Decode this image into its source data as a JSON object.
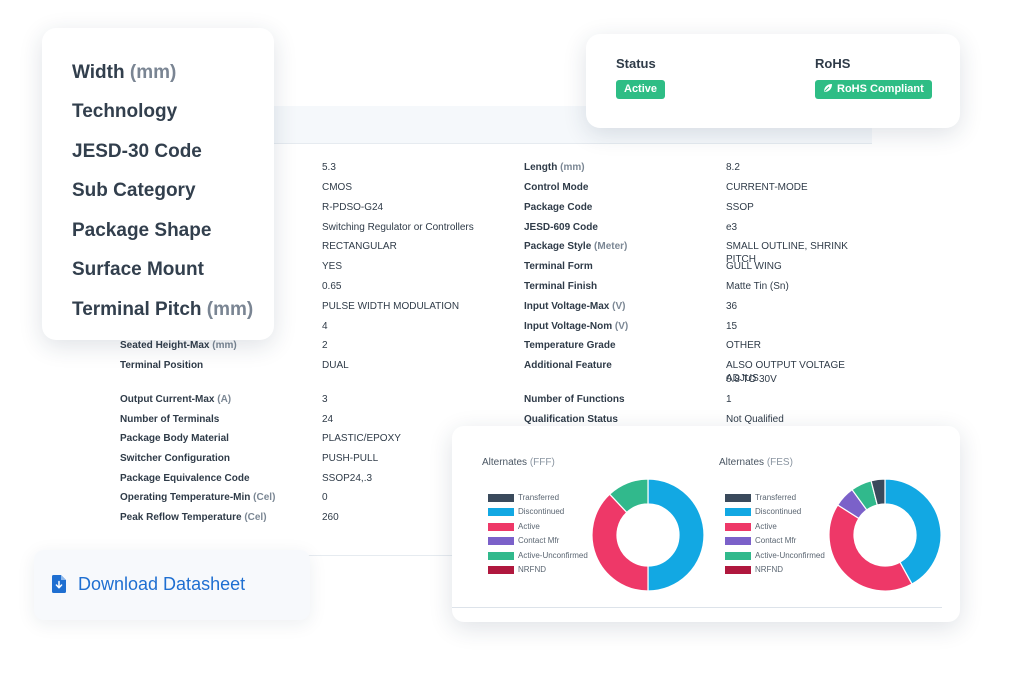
{
  "float_labels": [
    {
      "label": "Width",
      "unit": "(mm)"
    },
    {
      "label": "Technology",
      "unit": ""
    },
    {
      "label": "JESD-30 Code",
      "unit": ""
    },
    {
      "label": "Sub Category",
      "unit": ""
    },
    {
      "label": "Package Shape",
      "unit": ""
    },
    {
      "label": "Surface Mount",
      "unit": ""
    },
    {
      "label": "Terminal Pitch",
      "unit": "(mm)"
    }
  ],
  "status": {
    "status_title": "Status",
    "status_value": "Active",
    "rohs_title": "RoHS",
    "rohs_value": "RoHS Compliant",
    "badge_color": "#2ebd85"
  },
  "specs_left": [
    {
      "label": "",
      "unit": "",
      "value": "5.3"
    },
    {
      "label": "",
      "unit": "",
      "value": "CMOS"
    },
    {
      "label": "",
      "unit": "",
      "value": "R-PDSO-G24"
    },
    {
      "label": "",
      "unit": "",
      "value": "Switching Regulator or Controllers"
    },
    {
      "label": "",
      "unit": "",
      "value": "RECTANGULAR"
    },
    {
      "label": "",
      "unit": "",
      "value": "YES"
    },
    {
      "label": "",
      "unit": "",
      "value": "0.65"
    },
    {
      "label": "",
      "unit": "",
      "value": "PULSE WIDTH MODULATION"
    },
    {
      "label": "",
      "unit": "",
      "value": "4"
    },
    {
      "label": "Seated Height-Max",
      "unit": "(mm)",
      "value": "2"
    },
    {
      "label": "Terminal Position",
      "unit": "",
      "value": "DUAL"
    },
    {
      "label": "Output Current-Max",
      "unit": "(A)",
      "value": "3"
    },
    {
      "label": "Number of Terminals",
      "unit": "",
      "value": "24"
    },
    {
      "label": "Package Body Material",
      "unit": "",
      "value": "PLASTIC/EPOXY"
    },
    {
      "label": "Switcher Configuration",
      "unit": "",
      "value": "PUSH-PULL"
    },
    {
      "label": "Package Equivalence Code",
      "unit": "",
      "value": "SSOP24,.3"
    },
    {
      "label": "Operating Temperature-Min",
      "unit": "(Cel)",
      "value": "0"
    },
    {
      "label": "Peak Reflow Temperature",
      "unit": "(Cel)",
      "value": "260"
    }
  ],
  "specs_right": [
    {
      "label": "Length",
      "unit": "(mm)",
      "value": "8.2"
    },
    {
      "label": "Control Mode",
      "unit": "",
      "value": "CURRENT-MODE"
    },
    {
      "label": "Package Code",
      "unit": "",
      "value": "SSOP"
    },
    {
      "label": "JESD-609 Code",
      "unit": "",
      "value": "e3"
    },
    {
      "label": "Package Style",
      "unit": "(Meter)",
      "value": "SMALL OUTLINE, SHRINK PITCH"
    },
    {
      "label": "Terminal Form",
      "unit": "",
      "value": "GULL WING"
    },
    {
      "label": "Terminal Finish",
      "unit": "",
      "value": "Matte Tin (Sn)"
    },
    {
      "label": "Input Voltage-Max",
      "unit": "(V)",
      "value": "36"
    },
    {
      "label": "Input Voltage-Nom",
      "unit": "(V)",
      "value": "15"
    },
    {
      "label": "Temperature Grade",
      "unit": "",
      "value": "OTHER"
    },
    {
      "label": "Additional Feature",
      "unit": "",
      "value": "ALSO OUTPUT VOLTAGE ADJUS",
      "value2": "0.8 TO 30V"
    },
    {
      "label": "Number of Functions",
      "unit": "",
      "value": "1"
    },
    {
      "label": "Qualification Status",
      "unit": "",
      "value": "Not Qualified"
    }
  ],
  "alternates": [
    {
      "title": "Alternates",
      "suffix": "(FFF)",
      "legend": [
        {
          "name": "Transferred",
          "color": "#3a4a5c"
        },
        {
          "name": "Discontinued",
          "color": "#12a8e3"
        },
        {
          "name": "Active",
          "color": "#ee3868"
        },
        {
          "name": "Contact Mfr",
          "color": "#7b61c9"
        },
        {
          "name": "Active-Unconfirmed",
          "color": "#31b98c"
        },
        {
          "name": "NRFND",
          "color": "#b0183e"
        }
      ],
      "slices": [
        {
          "name": "Discontinued",
          "value": 50
        },
        {
          "name": "Active",
          "value": 38
        },
        {
          "name": "Active-Unconfirmed",
          "value": 12
        }
      ]
    },
    {
      "title": "Alternates",
      "suffix": "(FES)",
      "legend": [
        {
          "name": "Transferred",
          "color": "#3a4a5c"
        },
        {
          "name": "Discontinued",
          "color": "#12a8e3"
        },
        {
          "name": "Active",
          "color": "#ee3868"
        },
        {
          "name": "Contact Mfr",
          "color": "#7b61c9"
        },
        {
          "name": "Active-Unconfirmed",
          "color": "#31b98c"
        },
        {
          "name": "NRFND",
          "color": "#b0183e"
        }
      ],
      "slices": [
        {
          "name": "Discontinued",
          "value": 42
        },
        {
          "name": "Active",
          "value": 42
        },
        {
          "name": "Contact Mfr",
          "value": 6
        },
        {
          "name": "Active-Unconfirmed",
          "value": 6
        },
        {
          "name": "Transferred",
          "value": 4
        }
      ]
    }
  ],
  "download": {
    "label": "Download Datasheet",
    "icon": "file-download-icon",
    "color": "#1f6fd1"
  }
}
